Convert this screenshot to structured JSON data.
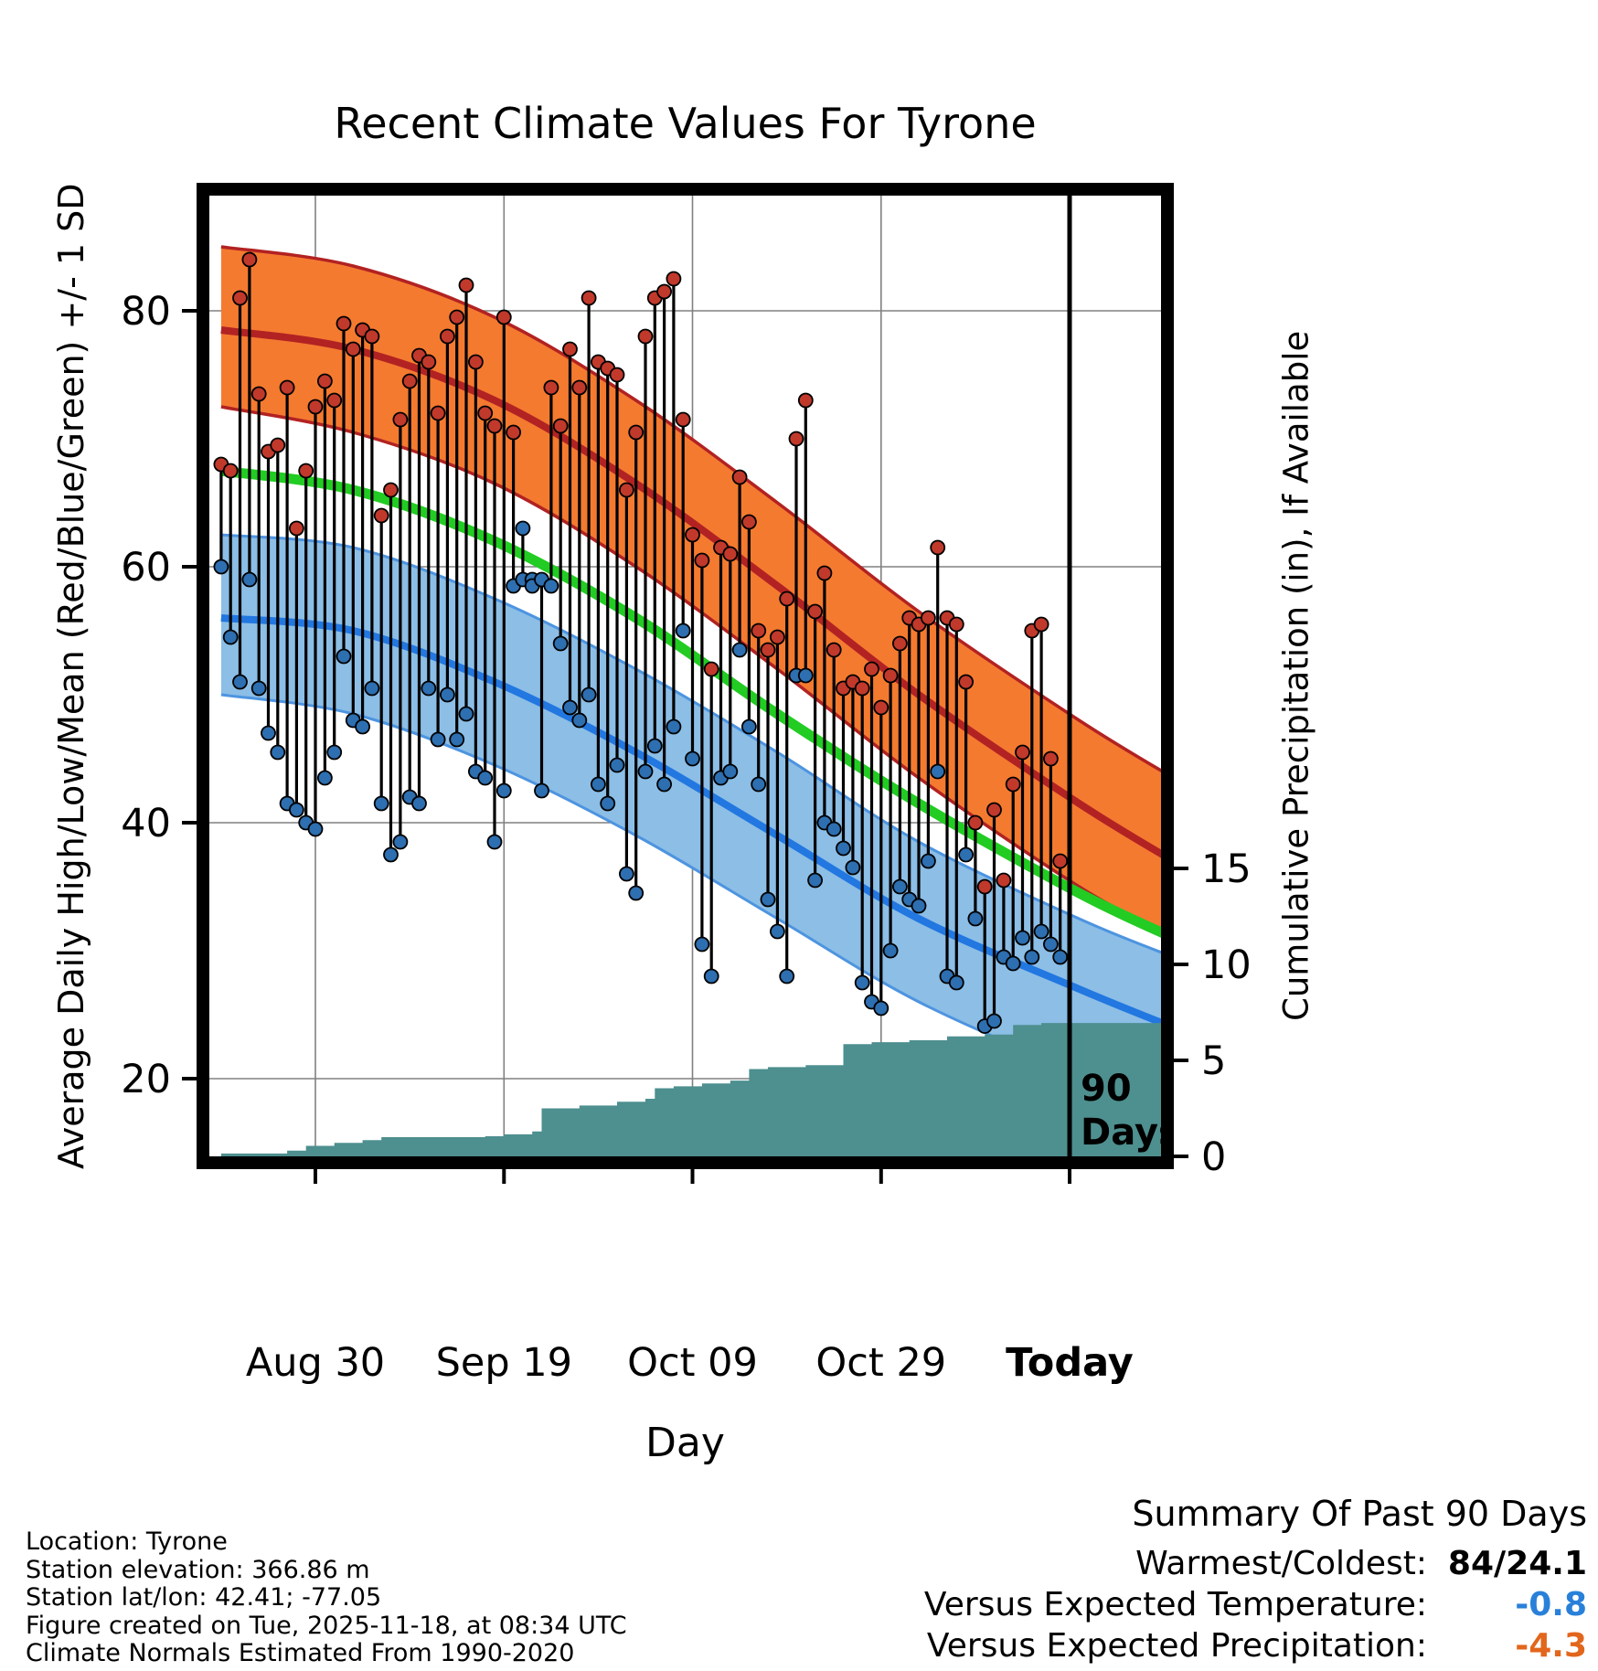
{
  "chart_data": {
    "type": "line",
    "title": "Recent Climate Values For Tyrone",
    "xlabel": "Day",
    "ylabel_left": "Average Daily High/Low/Mean (Red/Blue/Green) +/- 1 SD",
    "ylabel_right": "Cumulative Precipitation (in), If Available",
    "x_ticks": [
      {
        "label": "Aug 30",
        "day": 11,
        "bold": false
      },
      {
        "label": "Sep 19",
        "day": 31,
        "bold": false
      },
      {
        "label": "Oct 09",
        "day": 51,
        "bold": false
      },
      {
        "label": "Oct 29",
        "day": 71,
        "bold": false
      },
      {
        "label": "Today",
        "day": 91,
        "bold": true
      }
    ],
    "y_left_ticks": [
      20,
      40,
      60,
      80
    ],
    "y_right_ticks": [
      0,
      5,
      10,
      15
    ],
    "x_day_range": [
      0,
      101
    ],
    "y_left_range": [
      13.5,
      89.5
    ],
    "y_right_range": [
      0,
      15.5
    ],
    "grid": true,
    "annotation": {
      "line1": "90",
      "line2": "Days"
    },
    "normals": {
      "days": [
        1,
        15,
        30,
        45,
        60,
        75,
        92,
        102
      ],
      "high_mean": [
        78.5,
        77.0,
        73.0,
        66.5,
        58.5,
        50.0,
        41.5,
        37.0
      ],
      "mean": [
        67.5,
        66.0,
        62.0,
        56.0,
        48.5,
        41.5,
        34.5,
        31.0
      ],
      "low_mean": [
        56.0,
        55.0,
        51.0,
        45.5,
        39.0,
        32.5,
        27.0,
        24.0
      ],
      "high_upper": [
        85.0,
        83.5,
        79.5,
        73.0,
        65.0,
        56.5,
        48.0,
        43.5
      ],
      "high_lower": [
        72.5,
        70.5,
        66.5,
        60.0,
        52.0,
        43.5,
        35.0,
        31.0
      ],
      "low_upper": [
        62.5,
        61.5,
        57.5,
        52.0,
        45.5,
        38.5,
        32.5,
        29.5
      ],
      "low_lower": [
        50.0,
        48.5,
        44.5,
        39.0,
        32.5,
        26.0,
        20.5,
        18.0
      ]
    },
    "daily": {
      "first_day": 1,
      "high": [
        68,
        67.5,
        81,
        84,
        73.5,
        69,
        69.5,
        74,
        63,
        67.5,
        72.5,
        74.5,
        73,
        79,
        77,
        78.5,
        78,
        64,
        66,
        71.5,
        74.5,
        76.5,
        76,
        72,
        78,
        79.5,
        82,
        76,
        72,
        71,
        79.5,
        70.5,
        63,
        59,
        59,
        74,
        71,
        77,
        74,
        81,
        76,
        75.5,
        75,
        66,
        70.5,
        78,
        81,
        81.5,
        82.5,
        71.5,
        62.5,
        60.5,
        52,
        61.5,
        61,
        67,
        63.5,
        55,
        53.5,
        54.5,
        57.5,
        70,
        73,
        56.5,
        59.5,
        53.5,
        50.5,
        51,
        50.5,
        52,
        49,
        51.5,
        54,
        56,
        55.5,
        56,
        61.5,
        56,
        55.5,
        51,
        40,
        35,
        41,
        35.5,
        43,
        45.5,
        55,
        55.5,
        45,
        37
      ],
      "low": [
        60,
        54.5,
        51,
        59,
        50.5,
        47,
        45.5,
        41.5,
        41,
        40,
        39.5,
        43.5,
        45.5,
        53,
        48,
        47.5,
        50.5,
        41.5,
        37.5,
        38.5,
        42,
        41.5,
        50.5,
        46.5,
        50,
        46.5,
        48.5,
        44,
        43.5,
        38.5,
        42.5,
        58.5,
        59,
        58.5,
        42.5,
        58.5,
        54,
        49,
        48,
        50,
        43,
        41.5,
        44.5,
        36,
        34.5,
        44,
        46,
        43,
        47.5,
        55,
        45,
        30.5,
        28,
        43.5,
        44,
        53.5,
        47.5,
        43,
        34,
        31.5,
        28,
        51.5,
        51.5,
        35.5,
        40,
        39.5,
        38,
        36.5,
        27.5,
        26,
        25.5,
        30,
        35,
        34,
        33.5,
        37,
        44,
        28,
        27.5,
        37.5,
        32.5,
        24.1,
        24.5,
        29.5,
        29,
        31,
        29.5,
        31.5,
        30.5,
        29.5
      ],
      "blue_top_days": [
        33,
        34,
        35
      ]
    },
    "precip_cumulative_points": [
      [
        1,
        0.15
      ],
      [
        8,
        0.3
      ],
      [
        10,
        0.55
      ],
      [
        13,
        0.7
      ],
      [
        16,
        0.85
      ],
      [
        18,
        1.0
      ],
      [
        29,
        1.05
      ],
      [
        31,
        1.15
      ],
      [
        34,
        1.3
      ],
      [
        35,
        2.5
      ],
      [
        39,
        2.65
      ],
      [
        43,
        2.85
      ],
      [
        46,
        3.0
      ],
      [
        47,
        3.55
      ],
      [
        49,
        3.65
      ],
      [
        52,
        3.8
      ],
      [
        55,
        3.95
      ],
      [
        57,
        4.55
      ],
      [
        59,
        4.65
      ],
      [
        63,
        4.75
      ],
      [
        67,
        5.85
      ],
      [
        70,
        5.95
      ],
      [
        74,
        6.05
      ],
      [
        78,
        6.25
      ],
      [
        82,
        6.35
      ],
      [
        85,
        6.85
      ],
      [
        88,
        6.95
      ],
      [
        101,
        7.0
      ]
    ]
  },
  "footer": {
    "lines": [
      "Location: Tyrone",
      "Station elevation: 366.86 m",
      "Station lat/lon: 42.41; -77.05",
      "Figure created on Tue, 2025-11-18, at 08:34 UTC",
      "Climate Normals Estimated From 1990-2020"
    ]
  },
  "summary": {
    "title": "Summary Of Past 90 Days",
    "rows": [
      {
        "label": "Warmest/Coldest:",
        "value": "84/24.1",
        "color": "#000000"
      },
      {
        "label": "Versus Expected Temperature:",
        "value": "-0.8",
        "color": "#2980D9"
      },
      {
        "label": "Versus Expected Precipitation:",
        "value": "-4.3",
        "color": "#E2661C"
      }
    ]
  },
  "colors": {
    "high_band": "#F47A30",
    "high_line": "#B22222",
    "mean_line": "#22CC22",
    "low_band": "#8CBEE6",
    "low_band_edge": "#4D94E0",
    "low_line": "#2277E0",
    "high_dot": "#C1392B",
    "low_dot": "#2D6FB0",
    "bar": "#000000",
    "precip_fill": "#4E8F8F",
    "grid": "#808080",
    "border": "#000000"
  }
}
